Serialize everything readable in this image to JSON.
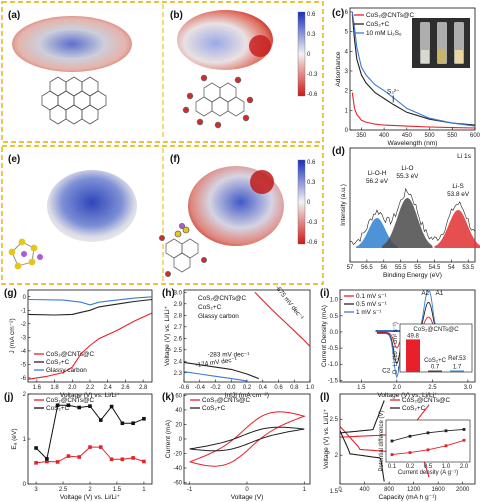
{
  "panels": {
    "a": "(a)",
    "b": "(b)",
    "c": "(c)",
    "d": "(d)",
    "e": "(e)",
    "f": "(f)",
    "g": "(g)",
    "h": "(h)",
    "i": "(i)",
    "j": "(j)",
    "k": "(k)",
    "l": "(l)"
  },
  "colorbar": {
    "ticks": [
      "0.6",
      "0.3",
      "0",
      "-0.3",
      "-0.6"
    ]
  },
  "chart_data": [
    {
      "id": "c",
      "type": "line",
      "xlabel": "Wavelength (nm)",
      "ylabel": "Adsorbance",
      "xlim": [
        325,
        600
      ],
      "ylim": [
        0,
        6.2
      ],
      "xticks": [
        "350",
        "400",
        "450",
        "500",
        "550",
        "600"
      ],
      "yticks": [
        "0",
        "1",
        "2",
        "3",
        "4",
        "5",
        "6"
      ],
      "annotation": "S₃²⁻",
      "series": [
        {
          "name": "CoS₂@CNTs@C",
          "color": "#e8202a",
          "x": [
            330,
            335,
            340,
            350,
            360,
            380,
            400,
            450,
            500,
            550,
            600
          ],
          "y": [
            1.9,
            1.1,
            0.8,
            0.5,
            0.4,
            0.3,
            0.25,
            0.2,
            0.15,
            0.12,
            0.1
          ]
        },
        {
          "name": "CoS₂+C",
          "color": "#222222",
          "x": [
            330,
            335,
            340,
            350,
            360,
            380,
            400,
            420,
            450,
            500,
            550,
            600
          ],
          "y": [
            5.9,
            4.6,
            3.6,
            2.8,
            2.4,
            1.9,
            1.6,
            1.3,
            0.9,
            0.55,
            0.35,
            0.25
          ]
        },
        {
          "name": "10 mM Li₂S₆",
          "color": "#3a7bd5",
          "x": [
            330,
            335,
            340,
            350,
            360,
            380,
            400,
            420,
            450,
            500,
            550,
            600
          ],
          "y": [
            6.0,
            5.2,
            4.2,
            3.2,
            2.8,
            2.3,
            2.0,
            1.65,
            1.1,
            0.6,
            0.35,
            0.2
          ]
        }
      ]
    },
    {
      "id": "d",
      "type": "line",
      "title": "Li 1s",
      "xlabel": "Binding Energy (eV)",
      "ylabel": "Intensity (a.u.)",
      "xlim": [
        57,
        53.3
      ],
      "xticks": [
        "57",
        "56.5",
        "56",
        "55.5",
        "55",
        "54.5",
        "54",
        "53.5"
      ],
      "peaks": [
        {
          "label": "Li-O-H",
          "value": "56.2 eV",
          "center": 56.2,
          "color": "#2f7fd0"
        },
        {
          "label": "Li-O",
          "value": "55.3 eV",
          "center": 55.3,
          "color": "#555555"
        },
        {
          "label": "Li-S",
          "value": "53.8 eV",
          "center": 53.8,
          "color": "#e03030"
        }
      ]
    },
    {
      "id": "g",
      "type": "line",
      "xlabel": "Voltage (V) vs. Li/Li⁺",
      "ylabel": "J (mA cm⁻²)",
      "xlim": [
        1.5,
        2.9
      ],
      "ylim": [
        -6.3,
        0.5
      ],
      "xticks": [
        "1.6",
        "1.8",
        "2.0",
        "2.2",
        "2.4",
        "2.6",
        "2.8"
      ],
      "yticks": [
        "0",
        "-1",
        "-2",
        "-3",
        "-4",
        "-5",
        "-6"
      ],
      "series": [
        {
          "name": "CoS₂@CNTs@C",
          "color": "#e8202a",
          "x": [
            1.5,
            1.7,
            1.9,
            2.0,
            2.1,
            2.2,
            2.3,
            2.5,
            2.7,
            2.9
          ],
          "y": [
            -6.1,
            -5.9,
            -5.6,
            -5.2,
            -4.2,
            -3.6,
            -3.1,
            -2.5,
            -1.8,
            -1.2
          ]
        },
        {
          "name": "CoS₂+C",
          "color": "#222222",
          "x": [
            1.5,
            1.8,
            2.0,
            2.1,
            2.2,
            2.3,
            2.5,
            2.7,
            2.9
          ],
          "y": [
            -1.3,
            -1.35,
            -1.3,
            -1.15,
            -1.0,
            -0.75,
            -0.55,
            -0.35,
            -0.2
          ]
        },
        {
          "name": "Glassy carbon",
          "color": "#3a7bd5",
          "x": [
            1.5,
            1.9,
            2.1,
            2.2,
            2.3,
            2.5,
            2.7,
            2.9
          ],
          "y": [
            -0.2,
            -0.25,
            -0.4,
            -0.6,
            -0.4,
            -0.25,
            -0.1,
            0.0
          ]
        }
      ]
    },
    {
      "id": "h",
      "type": "line",
      "xlabel": "ln|J| (mA cm⁻²)",
      "ylabel": "Voltage (V) vs. Li/Li⁺",
      "xlim": [
        -0.6,
        1.0
      ],
      "ylim": [
        2.22,
        3.02
      ],
      "xticks": [
        "-0.6",
        "-0.4",
        "-0.2",
        "0.0",
        "0.2",
        "0.4",
        "0.6",
        "0.8",
        "1.0"
      ],
      "yticks": [
        "2.3",
        "2.4",
        "2.5",
        "2.6",
        "2.7",
        "2.8",
        "2.9",
        "3.0"
      ],
      "series": [
        {
          "name": "CoS₂@CNTs@C",
          "color": "#e8202a",
          "slope_label": "-675 mV dec⁻¹",
          "x": [
            0.3,
            0.5,
            0.7,
            0.9,
            1.0
          ],
          "y": [
            3.0,
            2.86,
            2.73,
            2.6,
            2.53
          ]
        },
        {
          "name": "CoS₂+C",
          "color": "#222222",
          "slope_label": "-283 mV dec⁻¹",
          "x": [
            -0.6,
            -0.3,
            0.0,
            0.2,
            0.35
          ],
          "y": [
            2.39,
            2.36,
            2.33,
            2.29,
            2.25
          ]
        },
        {
          "name": "Glassy carbon",
          "color": "#3a7bd5",
          "slope_label": "-174 mV dec⁻¹",
          "x": [
            -0.6,
            -0.4,
            -0.2,
            0.0,
            0.2
          ],
          "y": [
            2.31,
            2.29,
            2.27,
            2.25,
            2.23
          ]
        }
      ]
    },
    {
      "id": "i",
      "type": "line",
      "xlabel": "Voltage (V) vs. Li/Li⁺",
      "ylabel": "Current Density (mA)",
      "xlim": [
        1.2,
        3.1
      ],
      "ylim": [
        -1.55,
        1.3
      ],
      "xticks": [
        "1.5",
        "2.0",
        "2.5",
        "3.0"
      ],
      "yticks": [
        "1.0",
        "0.5",
        "0.0",
        "-0.5",
        "-1.0",
        "-1.5"
      ],
      "peaks": [
        "A2",
        "A1",
        "C1",
        "C2"
      ],
      "series": [
        {
          "name": "0.1 mV s⁻¹",
          "color": "#e8202a"
        },
        {
          "name": "0.5 mV s⁻¹",
          "color": "#222222"
        },
        {
          "name": "1 mV s⁻¹",
          "color": "#3a7bd5"
        }
      ],
      "inset": {
        "type": "bar",
        "title": "CoS₂@CNTs@C",
        "ylabel": "D_Li (10⁻⁸ cm² s⁻¹)",
        "categories": [
          "CoS₂@CNTs@C",
          "CoS₂+C",
          "Ref.53"
        ],
        "values": [
          49.8,
          0.7,
          1.7
        ],
        "value_labels": [
          "49.8",
          "0.7",
          "1.7"
        ],
        "colors": [
          "#e8202a",
          "#444444",
          "#2f7fd0"
        ],
        "category_labels": [
          "CoS₂+C",
          "Ref.53"
        ]
      }
    },
    {
      "id": "j",
      "type": "line",
      "xlabel": "Voltage (V) vs. Li/Li⁺",
      "ylabel": "Eₐ (eV)",
      "xlim": [
        3.15,
        0.85
      ],
      "ylim": [
        0,
        2.0
      ],
      "xticks": [
        "3",
        "2.5",
        "2",
        "1.5",
        "1"
      ],
      "yticks": [
        "0",
        "1",
        "2"
      ],
      "series": [
        {
          "name": "CoS₂@CNTs@C",
          "color": "#e8202a",
          "x": [
            3.0,
            2.8,
            2.6,
            2.4,
            2.2,
            2.0,
            1.8,
            1.6,
            1.4,
            1.2,
            1.0
          ],
          "y": [
            0.47,
            0.5,
            0.49,
            0.62,
            0.6,
            0.82,
            0.82,
            0.55,
            0.55,
            0.58,
            0.5
          ]
        },
        {
          "name": "CoS₂+C",
          "color": "#111111",
          "x": [
            3.0,
            2.8,
            2.6,
            2.4,
            2.2,
            2.0,
            1.8,
            1.6,
            1.4,
            1.2,
            1.0
          ],
          "y": [
            0.8,
            0.56,
            1.75,
            1.75,
            1.7,
            1.73,
            1.42,
            1.72,
            1.35,
            1.35,
            1.45
          ]
        }
      ]
    },
    {
      "id": "k",
      "type": "line",
      "xlabel": "Voltage (V)",
      "ylabel": "Current (mA)",
      "xlim": [
        -1.1,
        1.1
      ],
      "ylim": [
        -62,
        62
      ],
      "xticks": [
        "-1",
        "0",
        "1"
      ],
      "yticks": [
        "60",
        "40",
        "20",
        "0",
        "-20",
        "-40",
        "-60"
      ],
      "series": [
        {
          "name": "CoS₂@CNTs@C",
          "color": "#e8202a"
        },
        {
          "name": "CoS₂+C",
          "color": "#222222"
        }
      ]
    },
    {
      "id": "l",
      "type": "line",
      "xlabel": "Capacity (mA h g⁻¹)",
      "ylabel": "Voltage (V) vs. Li/Li⁺",
      "xlim": [
        0,
        2200
      ],
      "ylim": [
        1.6,
        2.85
      ],
      "xticks": [
        "0",
        "400",
        "800",
        "1200",
        "1600",
        "2000"
      ],
      "yticks": [
        "2.5",
        "2",
        "1.5"
      ],
      "series": [
        {
          "name": "CoS₂@CNTs@C",
          "color": "#e8202a"
        },
        {
          "name": "CoS₂+C",
          "color": "#222222"
        }
      ],
      "inset": {
        "type": "line",
        "xlabel": "Current density (A g⁻¹)",
        "ylabel": "Potential difference (V)",
        "xticks": [
          "0.1",
          "0.2",
          "0.5",
          "1.0",
          "2.0"
        ],
        "series": [
          {
            "name": "CoS₂@CNTs@C",
            "color": "#e8202a",
            "y": [
              0.15,
              0.18,
              0.22,
              0.28,
              0.36
            ]
          },
          {
            "name": "CoS₂+C",
            "color": "#222222",
            "y": [
              0.35,
              0.42,
              0.47,
              0.5,
              0.52
            ]
          }
        ]
      }
    }
  ]
}
